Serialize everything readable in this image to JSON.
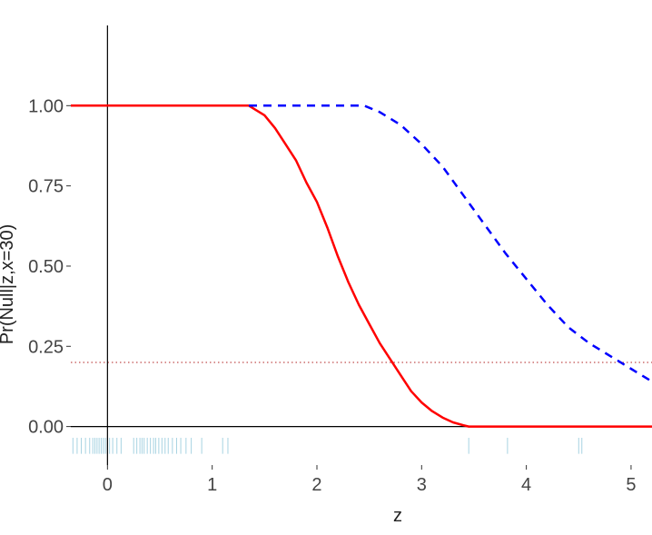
{
  "chart_data": {
    "type": "line",
    "title": "",
    "xlabel": "z",
    "ylabel": "Pr(Null|z,x=30)",
    "xlim": [
      -0.35,
      5.2
    ],
    "ylim": [
      -0.12,
      1.25
    ],
    "x_ticks": [
      0,
      1,
      2,
      3,
      4,
      5
    ],
    "x_tick_labels": [
      "0",
      "1",
      "2",
      "3",
      "4",
      "5"
    ],
    "y_ticks": [
      0,
      0.25,
      0.5,
      0.75,
      1
    ],
    "y_tick_labels": [
      "0.00",
      "0.25",
      "0.50",
      "0.75",
      "1.00"
    ],
    "grid": false,
    "legend": "none",
    "series": [
      {
        "style": "solid",
        "color": "#ff0000",
        "x": [
          -0.35,
          0,
          0.5,
          1,
          1.35,
          1.5,
          1.6,
          1.7,
          1.8,
          1.9,
          2.0,
          2.1,
          2.2,
          2.3,
          2.4,
          2.5,
          2.6,
          2.7,
          2.8,
          2.9,
          3.0,
          3.1,
          3.2,
          3.3,
          3.4,
          3.45,
          4.0,
          5.2
        ],
        "y": [
          1,
          1,
          1,
          1,
          1,
          0.97,
          0.93,
          0.88,
          0.83,
          0.76,
          0.7,
          0.62,
          0.53,
          0.45,
          0.38,
          0.32,
          0.26,
          0.21,
          0.16,
          0.11,
          0.075,
          0.048,
          0.028,
          0.013,
          0.004,
          0.0,
          0.0,
          0.0
        ]
      },
      {
        "style": "dashed",
        "color": "#0000ff",
        "x": [
          1.35,
          2.0,
          2.45,
          2.6,
          2.8,
          3.0,
          3.2,
          3.4,
          3.6,
          3.8,
          4.0,
          4.2,
          4.4,
          4.6,
          4.8,
          5.0,
          5.2
        ],
        "y": [
          1,
          1,
          1,
          0.98,
          0.94,
          0.88,
          0.81,
          0.72,
          0.63,
          0.54,
          0.46,
          0.38,
          0.31,
          0.26,
          0.22,
          0.18,
          0.14
        ]
      }
    ],
    "reference_lines": [
      {
        "orientation": "horizontal",
        "y": 0.2,
        "style": "dotted",
        "color": "#b22222"
      },
      {
        "orientation": "horizontal",
        "y": 0,
        "style": "solid",
        "color": "#000000"
      },
      {
        "orientation": "vertical",
        "x": 0,
        "style": "solid",
        "color": "#000000"
      }
    ],
    "rug": {
      "color": "#a7d3e2",
      "y_from": -0.085,
      "y_to": -0.035,
      "values": [
        -0.33,
        -0.29,
        -0.25,
        -0.21,
        -0.17,
        -0.14,
        -0.12,
        -0.1,
        -0.08,
        -0.06,
        -0.04,
        -0.02,
        0.0,
        0.02,
        0.05,
        0.09,
        0.13,
        0.25,
        0.28,
        0.31,
        0.33,
        0.35,
        0.38,
        0.41,
        0.44,
        0.46,
        0.49,
        0.52,
        0.55,
        0.58,
        0.62,
        0.66,
        0.7,
        0.75,
        0.8,
        0.9,
        1.1,
        1.15,
        3.45,
        3.82,
        4.5,
        4.53
      ]
    }
  }
}
